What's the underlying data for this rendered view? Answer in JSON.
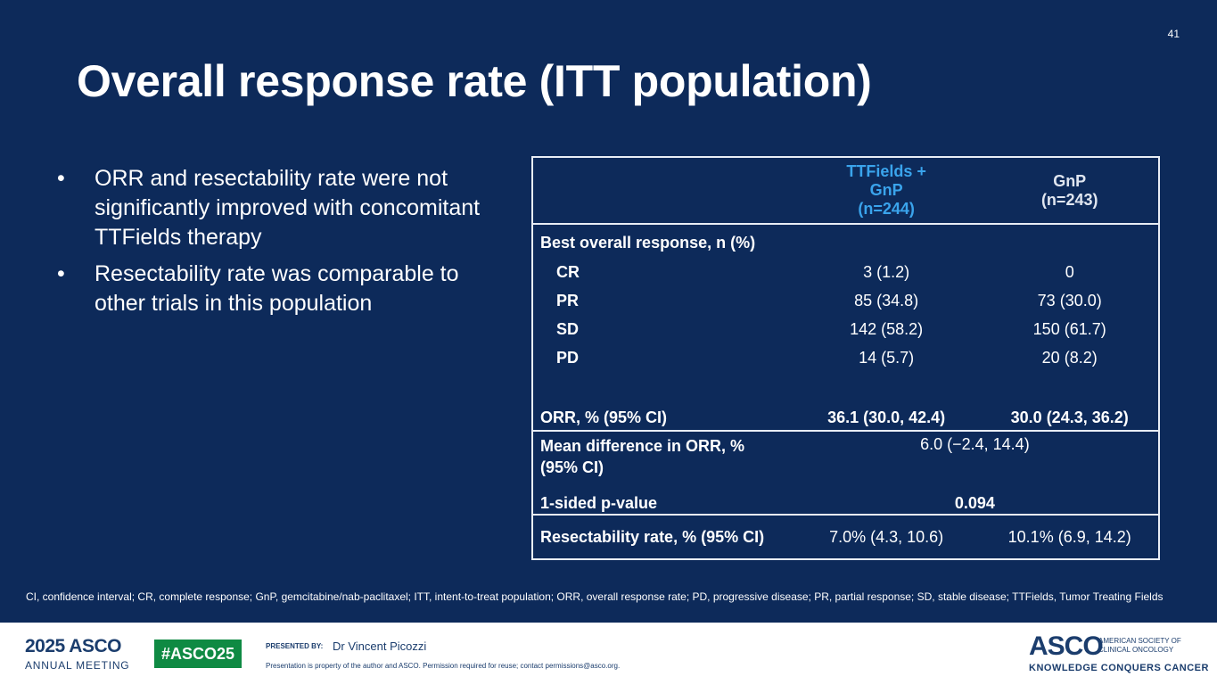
{
  "slide": {
    "number": "41",
    "title": "Overall response rate (ITT population)",
    "bullet_marker": "•",
    "bullets": [
      "ORR and resectability rate were not significantly improved with concomitant TTFields therapy",
      "Resectability rate was comparable to other trials in this population"
    ]
  },
  "table": {
    "header": {
      "col_a": {
        "line1": "TTFields +",
        "line2": "GnP",
        "line3": "(n=244)"
      },
      "col_b": {
        "line1": "GnP",
        "line2": "(n=243)"
      }
    },
    "best_response_label": "Best overall response, n (%)",
    "responses": [
      {
        "label": "CR",
        "a": "3 (1.2)",
        "b": "0"
      },
      {
        "label": "PR",
        "a": "85 (34.8)",
        "b": "73 (30.0)"
      },
      {
        "label": "SD",
        "a": "142 (58.2)",
        "b": "150 (61.7)"
      },
      {
        "label": "PD",
        "a": "14 (5.7)",
        "b": "20 (8.2)"
      }
    ],
    "orr": {
      "label": "ORR, % (95% CI)",
      "a": "36.1 (30.0, 42.4)",
      "b": "30.0 (24.3, 36.2)"
    },
    "mean_difference": {
      "label": "Mean difference in ORR, % (95% CI)",
      "value": "6.0 (−2.4, 14.4)"
    },
    "p_value": {
      "label": "1-sided p-value",
      "value": "0.094"
    },
    "resectability": {
      "label": "Resectability rate, % (95% CI)",
      "a": "7.0% (4.3, 10.6)",
      "b": "10.1% (6.9, 14.2)"
    }
  },
  "footnote": "CI, confidence interval; CR, complete response; GnP, gemcitabine/nab-paclitaxel; ITT, intent-to-treat population; ORR, overall response rate; PD, progressive disease; PR, partial response; SD, stable disease; TTFields, Tumor Treating Fields",
  "footer": {
    "meeting_year": "2025 ASCO",
    "meeting_name": "ANNUAL MEETING",
    "hashtag": "#ASCO25",
    "presented_by_label": "PRESENTED BY:",
    "presenter": "Dr Vincent Picozzi",
    "disclaimer": "Presentation is property of the author and ASCO. Permission required for reuse; contact permissions@asco.org.",
    "org_wordmark": "ASCO",
    "org_name": "AMERICAN SOCIETY OF CLINICAL ONCOLOGY",
    "org_tagline": "KNOWLEDGE CONQUERS CANCER"
  },
  "colors": {
    "background": "#0d2a5a",
    "accent_blue": "#3aa4ec",
    "hashtag_green": "#0f8a43",
    "footer_navy": "#1b3d6d"
  }
}
